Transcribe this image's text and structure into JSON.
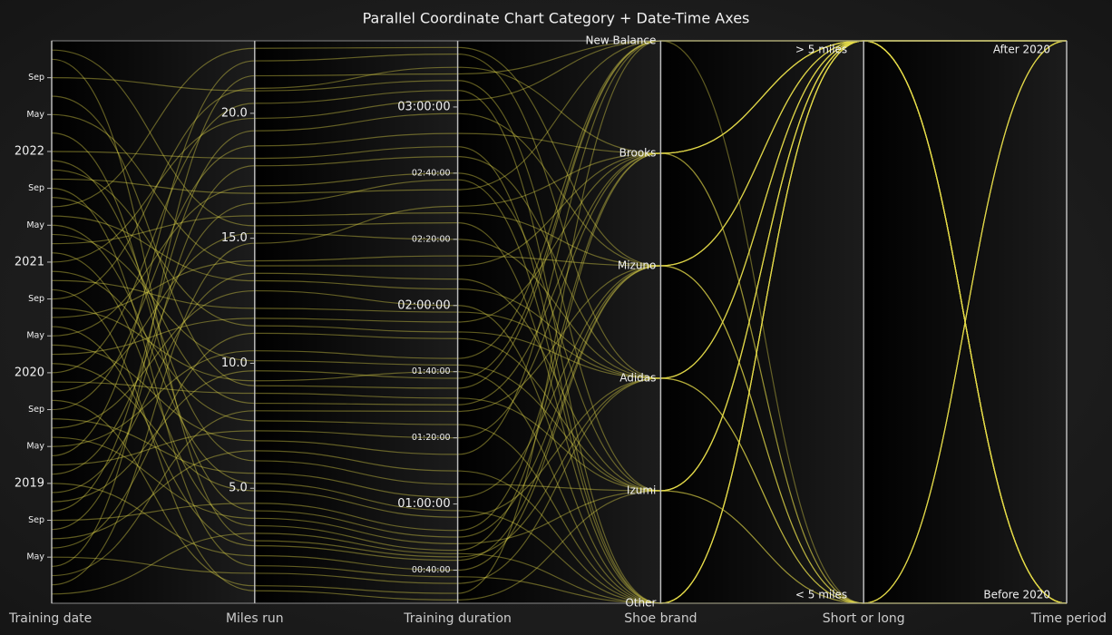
{
  "chart_data": {
    "type": "parallel",
    "title": "Parallel Coordinate Chart Category + Date-Time Axes",
    "color": "#e6dc4a",
    "axes": [
      {
        "label": "Training date",
        "scale": "time",
        "lim": [
          "2017-12",
          "2023-01"
        ],
        "ticks": [
          {
            "value": "2018-05",
            "label": "May"
          },
          {
            "value": "2018-09",
            "label": "Sep"
          },
          {
            "value": "2019-01",
            "label": "2019"
          },
          {
            "value": "2019-05",
            "label": "May"
          },
          {
            "value": "2019-09",
            "label": "Sep"
          },
          {
            "value": "2020-01",
            "label": "2020"
          },
          {
            "value": "2020-05",
            "label": "May"
          },
          {
            "value": "2020-09",
            "label": "Sep"
          },
          {
            "value": "2021-01",
            "label": "2021"
          },
          {
            "value": "2021-05",
            "label": "May"
          },
          {
            "value": "2021-09",
            "label": "Sep"
          },
          {
            "value": "2022-01",
            "label": "2022"
          },
          {
            "value": "2022-05",
            "label": "May"
          },
          {
            "value": "2022-09",
            "label": "Sep"
          }
        ]
      },
      {
        "label": "Miles run",
        "scale": "linear",
        "lim": [
          0.4,
          22.9
        ],
        "ticks": [
          {
            "value": 5,
            "label": "5.0"
          },
          {
            "value": 10,
            "label": "10.0"
          },
          {
            "value": 15,
            "label": "15.0"
          },
          {
            "value": 20,
            "label": "20.0"
          }
        ]
      },
      {
        "label": "Training duration",
        "scale": "linear",
        "lim": [
          30,
          200
        ],
        "ticks": [
          {
            "value": 40,
            "label": "00:40:00"
          },
          {
            "value": 60,
            "label": "01:00:00"
          },
          {
            "value": 80,
            "label": "01:20:00"
          },
          {
            "value": 100,
            "label": "01:40:00"
          },
          {
            "value": 120,
            "label": "02:00:00"
          },
          {
            "value": 140,
            "label": "02:20:00"
          },
          {
            "value": 160,
            "label": "02:40:00"
          },
          {
            "value": 180,
            "label": "03:00:00"
          }
        ]
      },
      {
        "label": "Shoe brand",
        "scale": "category",
        "categories": [
          "Other",
          "Izumi",
          "Adidas",
          "Mizuno",
          "Brooks",
          "New Balance"
        ]
      },
      {
        "label": "Short or long",
        "scale": "category",
        "categories": [
          "< 5 miles",
          "> 5 miles"
        ]
      },
      {
        "label": "Time period",
        "scale": "category",
        "categories": [
          "Before 2020",
          "After 2020"
        ]
      }
    ],
    "rows": [
      [
        "2018-01",
        3.2,
        45,
        "Other",
        "< 5 miles",
        "Before 2020"
      ],
      [
        "2018-02",
        14.8,
        150,
        "Brooks",
        "> 5 miles",
        "Before 2020"
      ],
      [
        "2018-03",
        8.1,
        88,
        "Mizuno",
        "> 5 miles",
        "Before 2020"
      ],
      [
        "2018-04",
        21.5,
        190,
        "New Balance",
        "> 5 miles",
        "Before 2020"
      ],
      [
        "2018-05",
        1.6,
        36,
        "Adidas",
        "< 5 miles",
        "Before 2020"
      ],
      [
        "2018-06",
        11.2,
        110,
        "Izumi",
        "> 5 miles",
        "Before 2020"
      ],
      [
        "2018-07",
        6.5,
        70,
        "Other",
        "> 5 miles",
        "Before 2020"
      ],
      [
        "2018-08",
        17.9,
        165,
        "Adidas",
        "> 5 miles",
        "Before 2020"
      ],
      [
        "2018-09",
        4.4,
        52,
        "Brooks",
        "< 5 miles",
        "Before 2020"
      ],
      [
        "2018-10",
        19.3,
        178,
        "Mizuno",
        "> 5 miles",
        "Before 2020"
      ],
      [
        "2018-11",
        9.7,
        98,
        "New Balance",
        "> 5 miles",
        "Before 2020"
      ],
      [
        "2018-12",
        13.6,
        128,
        "Izumi",
        "> 5 miles",
        "Before 2020"
      ],
      [
        "2019-01",
        2.3,
        40,
        "Mizuno",
        "< 5 miles",
        "Before 2020"
      ],
      [
        "2019-02",
        16.4,
        158,
        "Other",
        "> 5 miles",
        "Before 2020"
      ],
      [
        "2019-03",
        7.3,
        80,
        "Brooks",
        "> 5 miles",
        "Before 2020"
      ],
      [
        "2019-04",
        22.1,
        196,
        "Adidas",
        "> 5 miles",
        "Before 2020"
      ],
      [
        "2019-05",
        10.5,
        104,
        "New Balance",
        "> 5 miles",
        "Before 2020"
      ],
      [
        "2019-06",
        3.8,
        48,
        "Izumi",
        "< 5 miles",
        "Before 2020"
      ],
      [
        "2019-07",
        12.9,
        120,
        "Other",
        "> 5 miles",
        "Before 2020"
      ],
      [
        "2019-08",
        5.6,
        62,
        "Mizuno",
        "> 5 miles",
        "Before 2020"
      ],
      [
        "2019-09",
        18.7,
        172,
        "Brooks",
        "> 5 miles",
        "Before 2020"
      ],
      [
        "2019-10",
        1.1,
        33,
        "New Balance",
        "< 5 miles",
        "Before 2020"
      ],
      [
        "2019-11",
        15.2,
        140,
        "Adidas",
        "> 5 miles",
        "Before 2020"
      ],
      [
        "2019-12",
        8.8,
        92,
        "Izumi",
        "> 5 miles",
        "Before 2020"
      ],
      [
        "2020-01",
        20.4,
        185,
        "Other",
        "> 5 miles",
        "After 2020"
      ],
      [
        "2020-02",
        4.9,
        56,
        "Adidas",
        "< 5 miles",
        "After 2020"
      ],
      [
        "2020-03",
        11.8,
        115,
        "Brooks",
        "> 5 miles",
        "After 2020"
      ],
      [
        "2020-04",
        6.9,
        75,
        "New Balance",
        "> 5 miles",
        "After 2020"
      ],
      [
        "2020-05",
        17.1,
        160,
        "Izumi",
        "> 5 miles",
        "After 2020"
      ],
      [
        "2020-06",
        2.7,
        43,
        "Mizuno",
        "< 5 miles",
        "After 2020"
      ],
      [
        "2020-07",
        14.1,
        135,
        "Mizuno",
        "> 5 miles",
        "After 2020"
      ],
      [
        "2020-08",
        9.3,
        100,
        "Other",
        "> 5 miles",
        "After 2020"
      ],
      [
        "2020-09",
        21.0,
        192,
        "Brooks",
        "> 5 miles",
        "After 2020"
      ],
      [
        "2020-10",
        0.9,
        31,
        "Izumi",
        "< 5 miles",
        "After 2020"
      ],
      [
        "2020-11",
        12.2,
        118,
        "Adidas",
        "> 5 miles",
        "After 2020"
      ],
      [
        "2020-12",
        7.7,
        84,
        "Other",
        "> 5 miles",
        "After 2020"
      ],
      [
        "2021-01",
        19.8,
        182,
        "New Balance",
        "> 5 miles",
        "After 2020"
      ],
      [
        "2021-02",
        3.5,
        46,
        "Brooks",
        "< 5 miles",
        "After 2020"
      ],
      [
        "2021-03",
        15.9,
        148,
        "Mizuno",
        "> 5 miles",
        "After 2020"
      ],
      [
        "2021-04",
        10.1,
        102,
        "Izumi",
        "> 5 miles",
        "After 2020"
      ],
      [
        "2021-05",
        5.2,
        58,
        "Other",
        "> 5 miles",
        "After 2020"
      ],
      [
        "2021-06",
        13.3,
        125,
        "Adidas",
        "> 5 miles",
        "After 2020"
      ],
      [
        "2021-07",
        22.6,
        198,
        "Mizuno",
        "> 5 miles",
        "After 2020"
      ],
      [
        "2021-08",
        8.4,
        90,
        "Brooks",
        "> 5 miles",
        "After 2020"
      ],
      [
        "2021-09",
        1.9,
        38,
        "Other",
        "< 5 miles",
        "After 2020"
      ],
      [
        "2021-10",
        16.8,
        155,
        "New Balance",
        "> 5 miles",
        "After 2020"
      ],
      [
        "2021-11",
        11.5,
        112,
        "Adidas",
        "> 5 miles",
        "After 2020"
      ],
      [
        "2021-12",
        6.1,
        66,
        "Izumi",
        "> 5 miles",
        "After 2020"
      ],
      [
        "2022-01",
        18.2,
        168,
        "Other",
        "> 5 miles",
        "After 2020"
      ],
      [
        "2022-03",
        4.1,
        50,
        "Mizuno",
        "< 5 miles",
        "After 2020"
      ],
      [
        "2022-05",
        13.9,
        132,
        "Brooks",
        "> 5 miles",
        "After 2020"
      ],
      [
        "2022-07",
        9.1,
        95,
        "New Balance",
        "> 5 miles",
        "After 2020"
      ],
      [
        "2022-09",
        20.9,
        188,
        "Izumi",
        "> 5 miles",
        "After 2020"
      ],
      [
        "2022-11",
        2.9,
        44,
        "Adidas",
        "< 5 miles",
        "After 2020"
      ],
      [
        "2022-12",
        15.5,
        145,
        "Other",
        "> 5 miles",
        "After 2020"
      ]
    ]
  }
}
